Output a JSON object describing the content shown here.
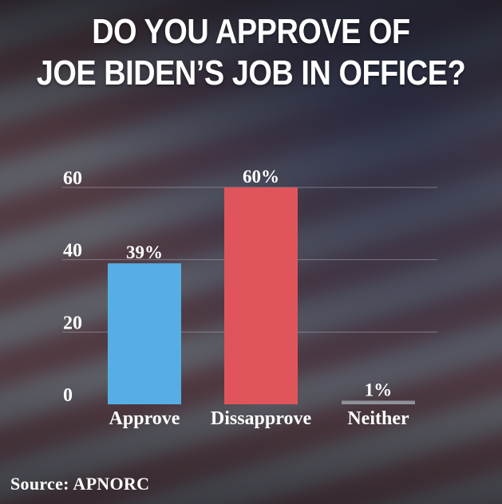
{
  "title_lines": [
    "DO YOU APPROVE OF",
    "JOE BIDEN’S JOB IN OFFICE?"
  ],
  "source": "Source: APNORC",
  "colors": {
    "approve": "#56aee5",
    "disapprove": "#e0555c",
    "neither": "#8f9198",
    "grid": "#a9acb4",
    "text": "#ffffff"
  },
  "chart_data": {
    "type": "bar",
    "title": "DO YOU APPROVE OF JOE BIDEN’S JOB IN OFFICE?",
    "categories": [
      "Approve",
      "Dissapprove",
      "Neither"
    ],
    "values": [
      39,
      60,
      1
    ],
    "data_labels": [
      "39%",
      "60%",
      "1%"
    ],
    "yticks": [
      "0",
      "20",
      "40",
      "60"
    ],
    "ylim": [
      0,
      60
    ],
    "grid": true,
    "xlabel": "",
    "ylabel": ""
  }
}
